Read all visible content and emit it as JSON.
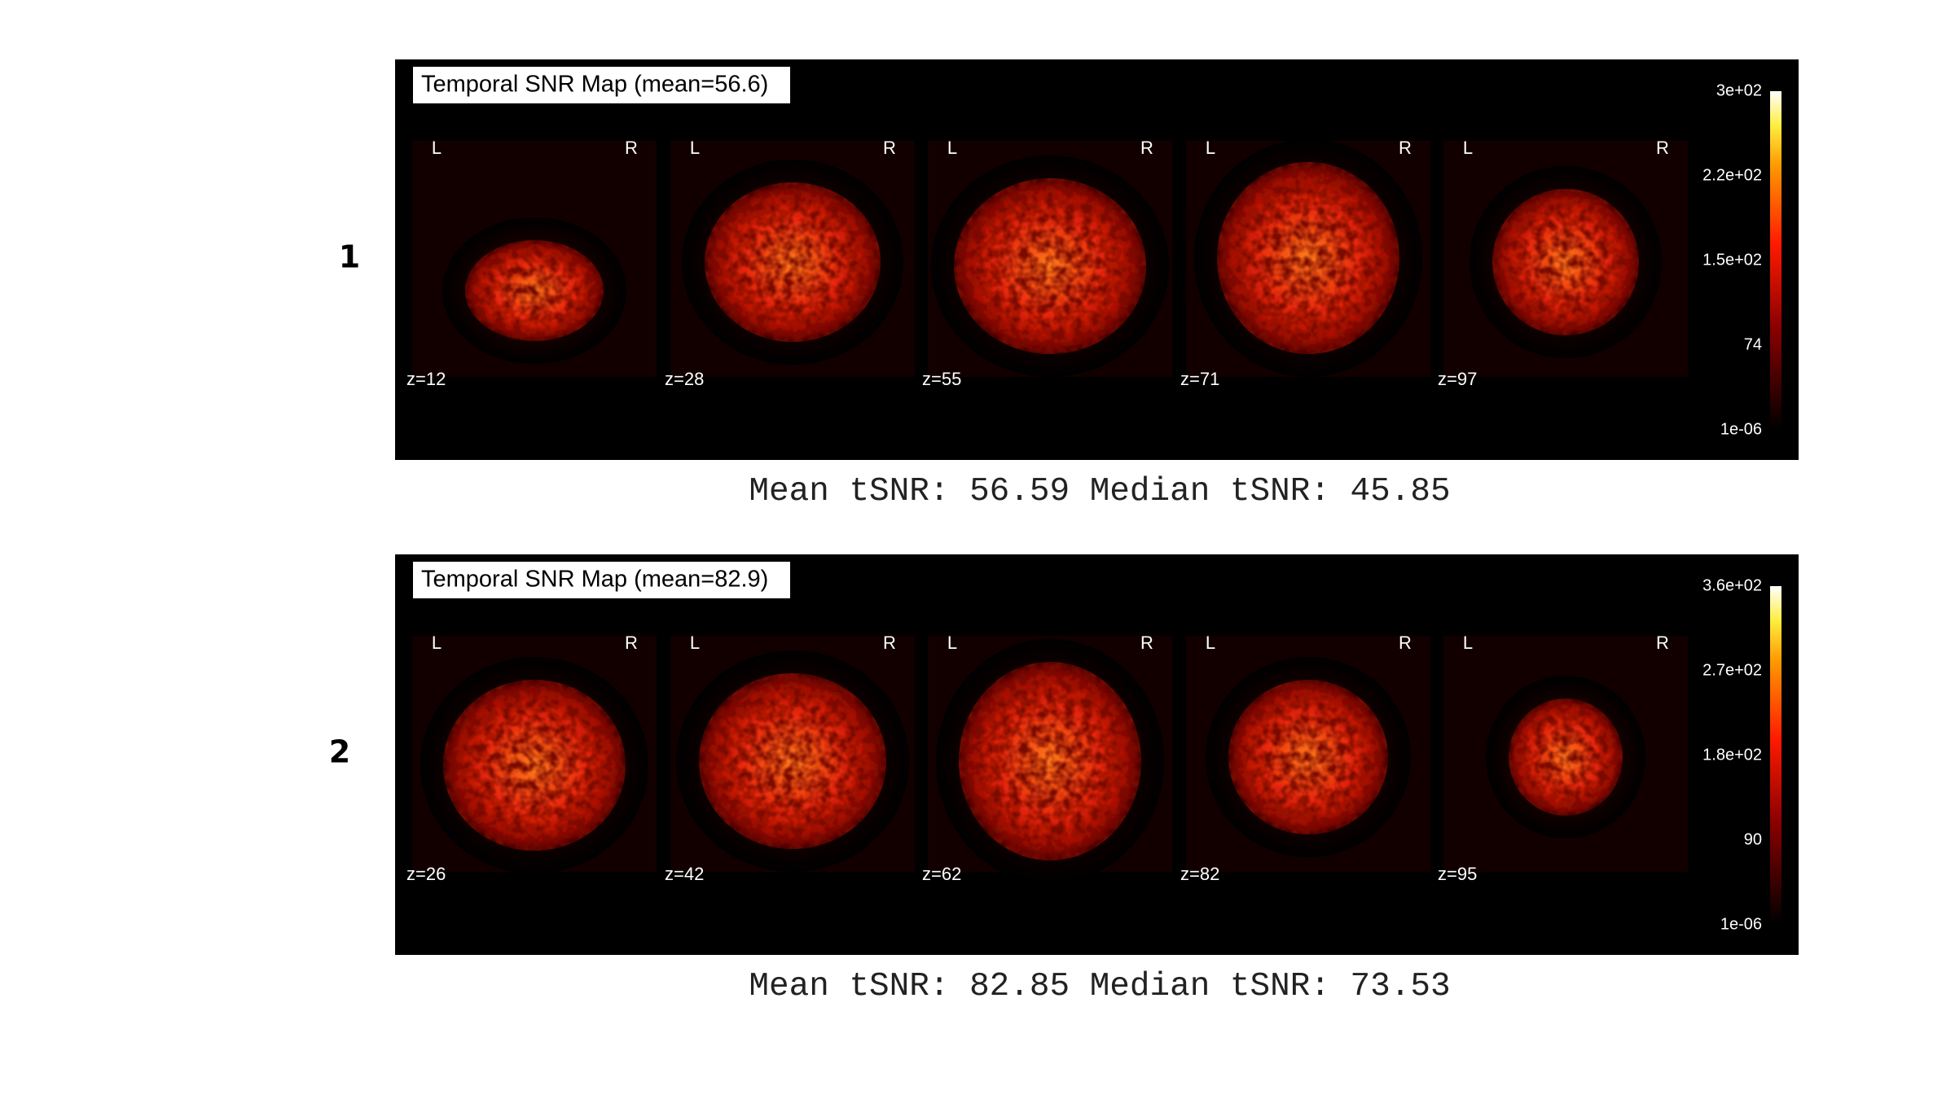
{
  "panels": [
    {
      "label": "1",
      "title": "Temporal SNR Map (mean=56.6)",
      "slices": [
        "z=12",
        "z=28",
        "z=55",
        "z=71",
        "z=97"
      ],
      "colorbar": [
        "3e+02",
        "2.2e+02",
        "1.5e+02",
        "74",
        "1e-06"
      ],
      "caption": "Mean tSNR: 56.59 Median tSNR: 45.85"
    },
    {
      "label": "2",
      "title": "Temporal SNR Map (mean=82.9)",
      "slices": [
        "z=26",
        "z=42",
        "z=62",
        "z=82",
        "z=95"
      ],
      "colorbar": [
        "3.6e+02",
        "2.7e+02",
        "1.8e+02",
        "90",
        "1e-06"
      ],
      "caption": "Mean tSNR: 82.85 Median tSNR: 73.53"
    }
  ],
  "orientation": {
    "left": "L",
    "right": "R"
  }
}
